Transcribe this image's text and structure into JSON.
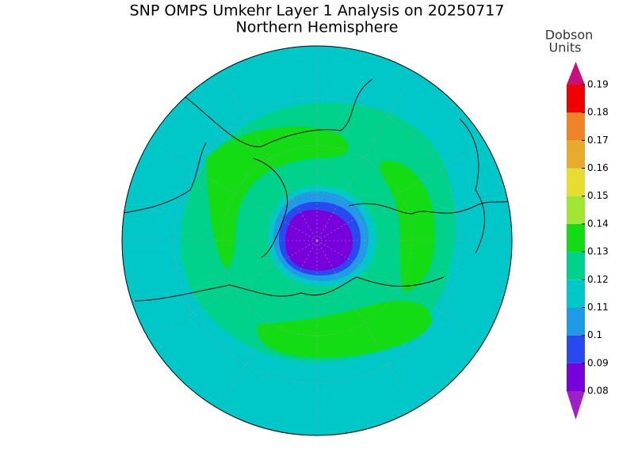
{
  "title": "SNP OMPS Umkehr Layer 1 Analysis on 20250717",
  "subtitle": "Northern Hemisphere",
  "colorbar": {
    "label_lines": [
      "Dobson",
      "Units"
    ],
    "levels": [
      0.08,
      0.09,
      0.1,
      0.11,
      0.12,
      0.13,
      0.14,
      0.15,
      0.16,
      0.17,
      0.18,
      0.19
    ],
    "colors": [
      "#a020c8",
      "#7800dc",
      "#2848f0",
      "#1e9ae6",
      "#00c8c8",
      "#00d28c",
      "#14dc14",
      "#a0e632",
      "#e6dc32",
      "#e6aa2d",
      "#f08228",
      "#f00000",
      "#c8107a"
    ]
  }
}
